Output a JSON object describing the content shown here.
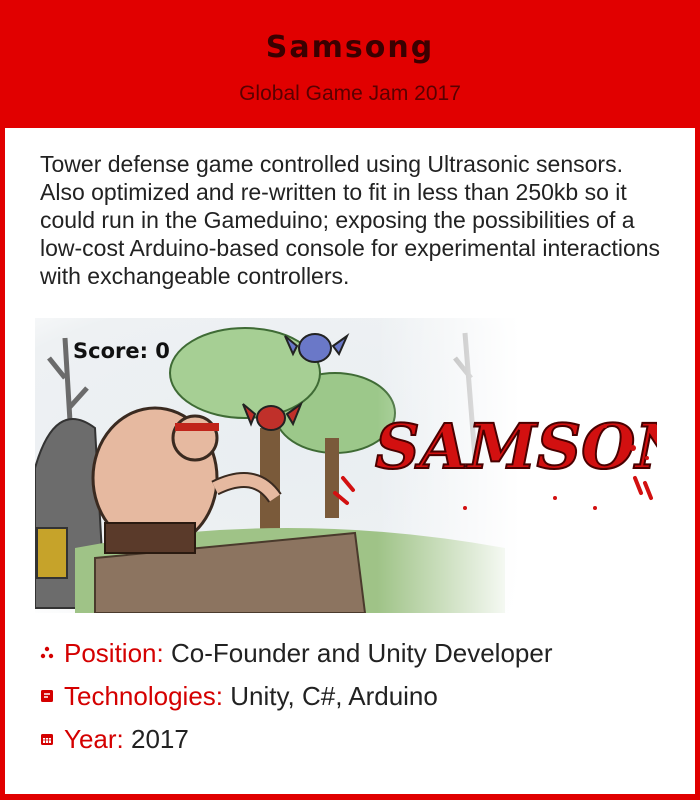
{
  "header": {
    "title": "Samsong",
    "subtitle": "Global Game Jam 2017"
  },
  "description": "Tower defense game controlled using Ultrasonic sensors. Also optimized and re-written to fit in less than 250kb so it could run in the Gameduino; exposing the possibilities of a low-cost Arduino-based console for experimental interactions with exchangeable controllers.",
  "artwork": {
    "score_text": "Score: 0",
    "logo_text": "SAMSONG"
  },
  "details": [
    {
      "label": "Position:",
      "value": "Co-Founder and Unity Developer",
      "icon": "people-icon"
    },
    {
      "label": "Technologies:",
      "value": "Unity, C#, Arduino",
      "icon": "code-icon"
    },
    {
      "label": "Year:",
      "value": "2017",
      "icon": "calendar-icon"
    }
  ],
  "colors": {
    "accent": "#e10000",
    "label": "#d40000",
    "text": "#222222",
    "title": "#3a0000"
  }
}
